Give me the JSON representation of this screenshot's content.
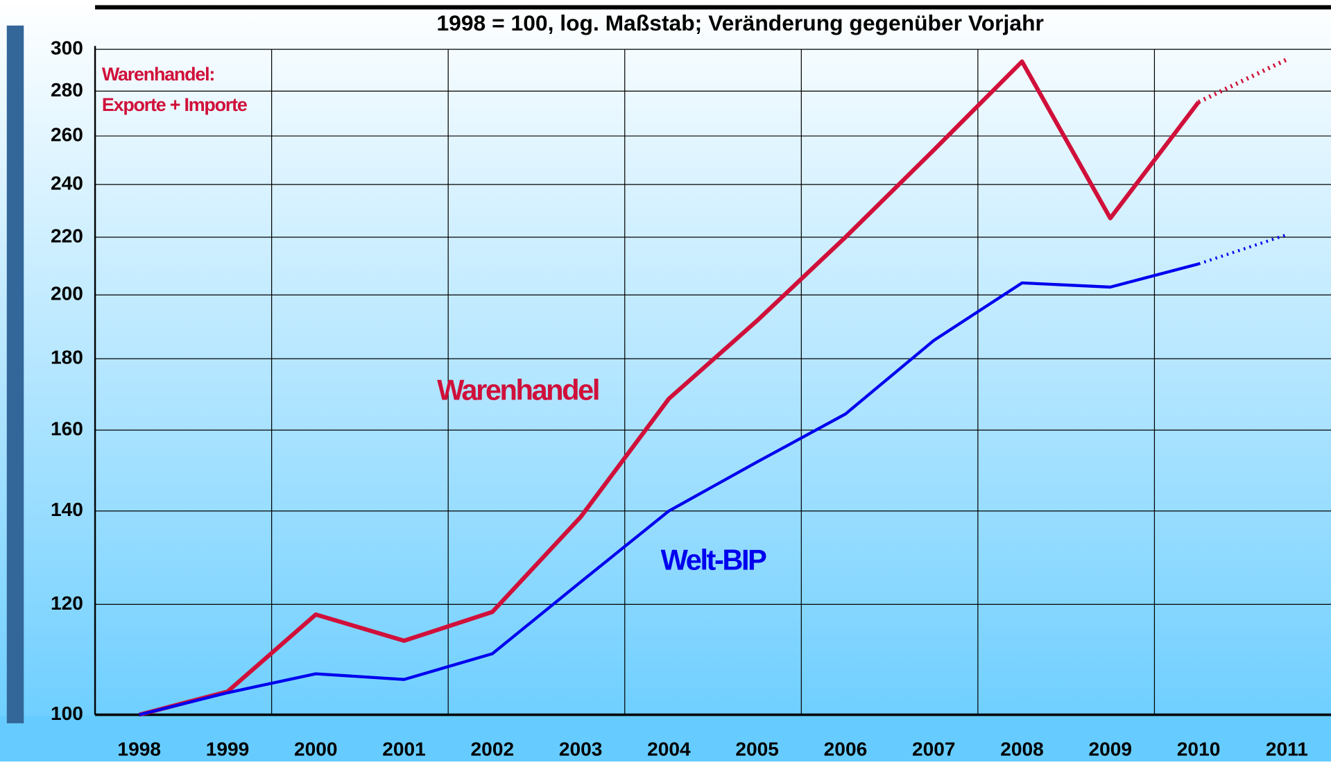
{
  "chart_data": {
    "type": "line",
    "title": "1998 = 100, log. Maßstab; Veränderung gegenüber Vorjahr",
    "x": [
      1998,
      1999,
      2000,
      2001,
      2002,
      2003,
      2004,
      2005,
      2006,
      2007,
      2008,
      2009,
      2010,
      2011
    ],
    "series": [
      {
        "name": "Warenhandel",
        "color": "#d0103a",
        "values": [
          100,
          103.9,
          118,
          113,
          118.5,
          138.6,
          168.5,
          191.7,
          220,
          254,
          294,
          227,
          275,
          295
        ]
      },
      {
        "name": "Welt-BIP",
        "color": "#0000ee",
        "values": [
          100,
          103.7,
          107,
          106,
          110.6,
          124.5,
          140,
          151.8,
          164.3,
          185.5,
          204,
          202.6,
          210.5,
          220.9
        ]
      }
    ],
    "dotted_from": 2010,
    "annotations": [
      "Warenhandel:",
      "Exporte +  Importe"
    ],
    "log_scale": true,
    "ylim": [
      100,
      300
    ],
    "yticks": [
      100,
      120,
      140,
      160,
      180,
      200,
      220,
      240,
      260,
      280,
      300
    ],
    "xlim": [
      1997.5,
      2011.5
    ],
    "xticks": [
      1998,
      1999,
      2000,
      2001,
      2002,
      2003,
      2004,
      2005,
      2006,
      2007,
      2008,
      2009,
      2010,
      2011
    ],
    "xgrid": [
      1999.5,
      2001.5,
      2003.5,
      2005.5,
      2007.5,
      2009.5
    ],
    "grid": true
  }
}
